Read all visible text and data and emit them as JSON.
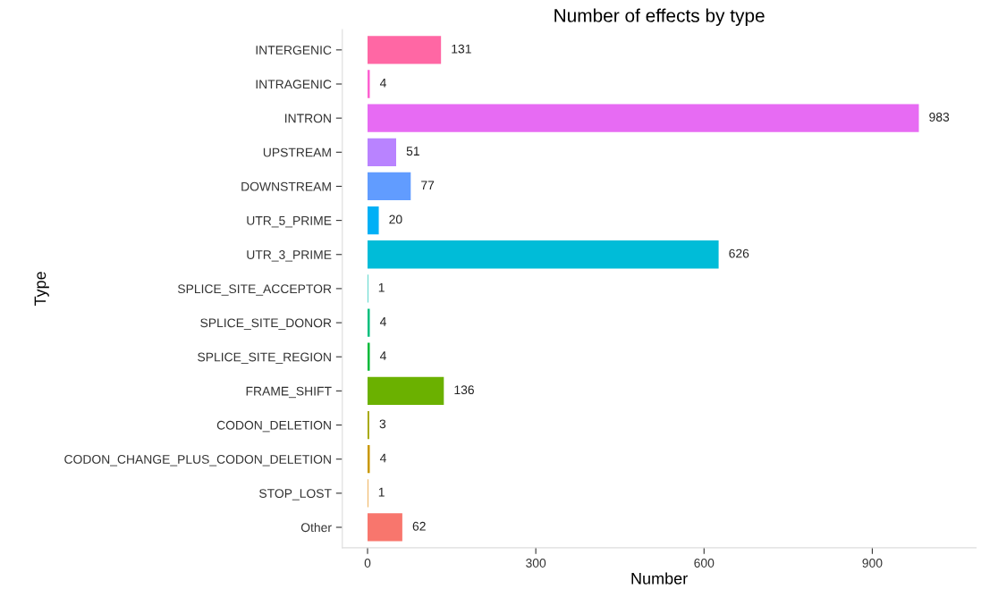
{
  "chart_data": {
    "type": "bar",
    "orientation": "horizontal",
    "title": "Number of effects by type",
    "xlabel": "Number",
    "ylabel": "Type",
    "categories": [
      "INTERGENIC",
      "INTRAGENIC",
      "INTRON",
      "UPSTREAM",
      "DOWNSTREAM",
      "UTR_5_PRIME",
      "UTR_3_PRIME",
      "SPLICE_SITE_ACCEPTOR",
      "SPLICE_SITE_DONOR",
      "SPLICE_SITE_REGION",
      "FRAME_SHIFT",
      "CODON_DELETION",
      "CODON_CHANGE_PLUS_CODON_DELETION",
      "STOP_LOST",
      "Other"
    ],
    "values": [
      131,
      4,
      983,
      51,
      77,
      20,
      626,
      1,
      4,
      4,
      136,
      3,
      4,
      1,
      62
    ],
    "colors": [
      "#ff67a4",
      "#fd61d1",
      "#e76bf3",
      "#b983ff",
      "#619cff",
      "#00b0f6",
      "#00bcd8",
      "#00c0af",
      "#00bf7d",
      "#00ba38",
      "#6bb100",
      "#a3a500",
      "#c99800",
      "#e58700",
      "#f8766d"
    ],
    "xlim": [
      -45,
      1085
    ],
    "xticks": [
      0,
      300,
      600,
      900
    ],
    "grid": false,
    "legend": false,
    "data_labels": true
  }
}
